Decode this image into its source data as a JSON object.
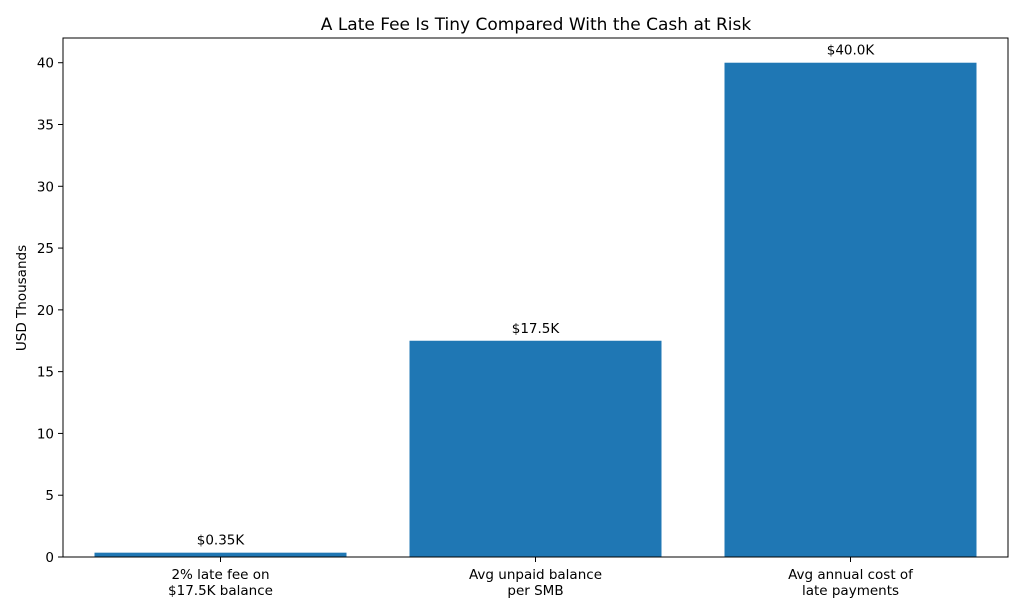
{
  "chart_data": {
    "type": "bar",
    "title": "A Late Fee Is Tiny Compared With the Cash at Risk",
    "xlabel": "",
    "ylabel": "USD Thousands",
    "categories": [
      [
        "2% late fee on",
        "$17.5K balance"
      ],
      [
        "Avg unpaid balance",
        "per SMB"
      ],
      [
        "Avg annual cost of",
        "late payments"
      ]
    ],
    "values": [
      0.35,
      17.5,
      40.0
    ],
    "data_labels": [
      "$0.35K",
      "$17.5K",
      "$40.0K"
    ],
    "ylim": [
      0,
      42
    ],
    "yticks": [
      0,
      5,
      10,
      15,
      20,
      25,
      30,
      35,
      40
    ],
    "bar_color": "#1f77b4",
    "grid": false
  }
}
